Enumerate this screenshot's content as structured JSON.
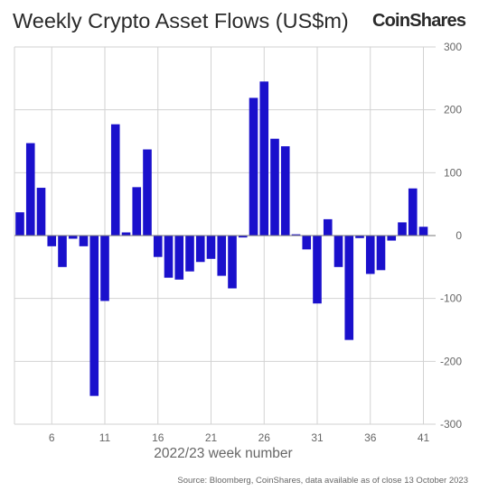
{
  "header": {
    "title": "Weekly Crypto Asset Flows (US$m)",
    "logo_text": "CoinShares"
  },
  "footer": {
    "source": "Source: Bloomberg, CoinShares, data available as of close 13 October 2023"
  },
  "chart_data": {
    "type": "bar",
    "title": "Weekly Crypto Asset Flows (US$m)",
    "xlabel": "2022/23 week number",
    "ylabel": "",
    "ylim": [
      -300,
      300
    ],
    "yticks": [
      -300,
      -200,
      -100,
      0,
      100,
      200,
      300
    ],
    "ytick_labels": [
      "-300",
      "-200",
      "-100",
      "0",
      "100",
      "200",
      "300"
    ],
    "xtick_values": [
      6,
      11,
      16,
      21,
      26,
      31,
      36,
      41
    ],
    "xtick_labels": [
      "6",
      "11",
      "16",
      "21",
      "26",
      "31",
      "36",
      "41"
    ],
    "grid": true,
    "bar_color": "#1a10cc",
    "weeks": [
      3,
      4,
      5,
      6,
      7,
      8,
      9,
      10,
      11,
      12,
      13,
      14,
      15,
      16,
      17,
      18,
      19,
      20,
      21,
      22,
      23,
      24,
      25,
      26,
      27,
      28,
      29,
      30,
      31,
      32,
      33,
      34,
      35,
      36,
      37,
      38,
      39,
      40,
      41
    ],
    "values": [
      37,
      147,
      76,
      -17,
      -50,
      -5,
      -17,
      -255,
      -104,
      177,
      5,
      77,
      137,
      -34,
      -67,
      -70,
      -57,
      -42,
      -37,
      -64,
      -84,
      -3,
      219,
      245,
      154,
      142,
      2,
      -22,
      -108,
      26,
      -50,
      -166,
      -4,
      -61,
      -55,
      -8,
      21,
      75,
      14
    ]
  }
}
